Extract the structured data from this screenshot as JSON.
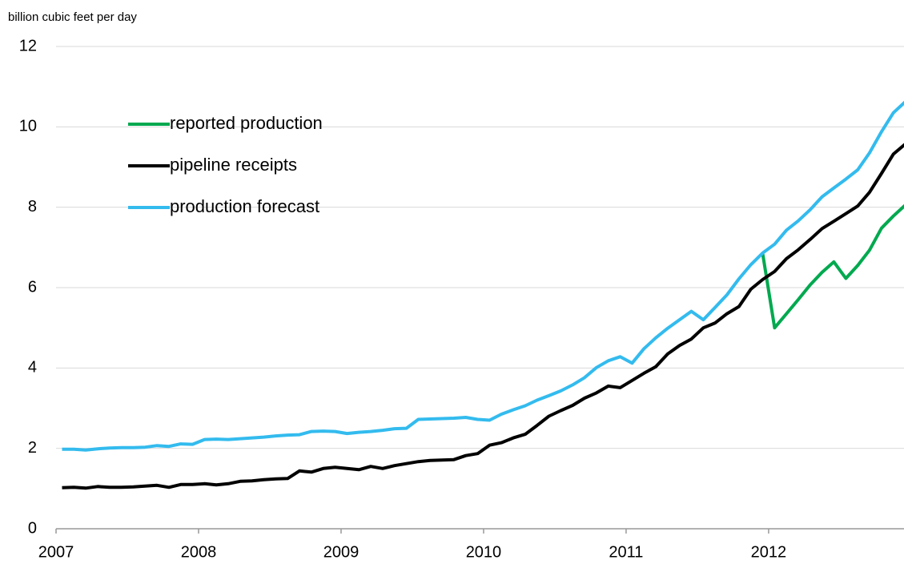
{
  "chart_data": {
    "type": "line",
    "y_label": "billion cubic feet per day",
    "x": [
      2007.042,
      2007.125,
      2007.208,
      2007.292,
      2007.375,
      2007.458,
      2007.542,
      2007.625,
      2007.708,
      2007.792,
      2007.875,
      2007.958,
      2008.042,
      2008.125,
      2008.208,
      2008.292,
      2008.375,
      2008.458,
      2008.542,
      2008.625,
      2008.708,
      2008.792,
      2008.875,
      2008.958,
      2009.042,
      2009.125,
      2009.208,
      2009.292,
      2009.375,
      2009.458,
      2009.542,
      2009.625,
      2009.708,
      2009.792,
      2009.875,
      2009.958,
      2010.042,
      2010.125,
      2010.208,
      2010.292,
      2010.375,
      2010.458,
      2010.542,
      2010.625,
      2010.708,
      2010.792,
      2010.875,
      2010.958,
      2011.042,
      2011.125,
      2011.208,
      2011.292,
      2011.375,
      2011.458,
      2011.542,
      2011.625,
      2011.708,
      2011.792,
      2011.875,
      2011.958,
      2012.042,
      2012.125,
      2012.208,
      2012.292,
      2012.375,
      2012.458,
      2012.542,
      2012.625,
      2012.708,
      2012.792,
      2012.875,
      2012.958
    ],
    "series": [
      {
        "name": "reported production",
        "color": "#00a94f",
        "values": [
          null,
          null,
          null,
          null,
          null,
          null,
          null,
          null,
          null,
          null,
          null,
          null,
          null,
          null,
          null,
          null,
          null,
          null,
          null,
          null,
          null,
          null,
          null,
          null,
          null,
          null,
          null,
          null,
          null,
          null,
          null,
          null,
          null,
          null,
          null,
          null,
          null,
          null,
          null,
          null,
          null,
          null,
          null,
          null,
          null,
          null,
          null,
          null,
          null,
          null,
          null,
          null,
          null,
          null,
          null,
          null,
          null,
          null,
          null,
          6.86,
          5.0,
          5.35,
          5.7,
          6.07,
          6.38,
          6.64,
          6.23,
          6.55,
          6.93,
          7.48,
          7.78,
          8.05
        ]
      },
      {
        "name": "pipeline receipts",
        "color": "#000000",
        "values": [
          1.02,
          1.03,
          1.01,
          1.05,
          1.03,
          1.03,
          1.04,
          1.06,
          1.08,
          1.03,
          1.1,
          1.1,
          1.12,
          1.09,
          1.12,
          1.18,
          1.19,
          1.22,
          1.24,
          1.25,
          1.44,
          1.41,
          1.5,
          1.53,
          1.5,
          1.47,
          1.55,
          1.5,
          1.57,
          1.62,
          1.67,
          1.7,
          1.71,
          1.72,
          1.82,
          1.87,
          2.08,
          2.14,
          2.26,
          2.35,
          2.57,
          2.8,
          2.94,
          3.07,
          3.25,
          3.38,
          3.55,
          3.51,
          3.69,
          3.87,
          4.03,
          4.35,
          4.56,
          4.72,
          5.0,
          5.12,
          5.35,
          5.53,
          5.96,
          6.2,
          6.4,
          6.72,
          6.94,
          7.2,
          7.47,
          7.65,
          7.84,
          8.03,
          8.37,
          8.84,
          9.32,
          9.57
        ]
      },
      {
        "name": "production forecast",
        "color": "#33bbee",
        "values": [
          1.98,
          1.98,
          1.96,
          1.99,
          2.01,
          2.02,
          2.02,
          2.03,
          2.07,
          2.05,
          2.11,
          2.1,
          2.22,
          2.23,
          2.22,
          2.24,
          2.26,
          2.28,
          2.31,
          2.33,
          2.34,
          2.42,
          2.43,
          2.42,
          2.37,
          2.4,
          2.42,
          2.45,
          2.49,
          2.5,
          2.72,
          2.73,
          2.74,
          2.75,
          2.77,
          2.72,
          2.7,
          2.85,
          2.96,
          3.06,
          3.2,
          3.31,
          3.43,
          3.58,
          3.76,
          4.01,
          4.18,
          4.28,
          4.12,
          4.48,
          4.75,
          4.99,
          5.2,
          5.41,
          5.2,
          5.51,
          5.82,
          6.22,
          6.57,
          6.86,
          7.08,
          7.43,
          7.66,
          7.94,
          8.26,
          8.48,
          8.7,
          8.93,
          9.35,
          9.88,
          10.35,
          10.62
        ]
      }
    ],
    "xlim": [
      2007,
      2012.95
    ],
    "xticks": [
      2007,
      2008,
      2009,
      2010,
      2011,
      2012
    ],
    "ylim": [
      0,
      12
    ],
    "yticks": [
      0,
      2,
      4,
      6,
      8,
      10,
      12
    ],
    "grid": true,
    "legend": "upper left"
  }
}
